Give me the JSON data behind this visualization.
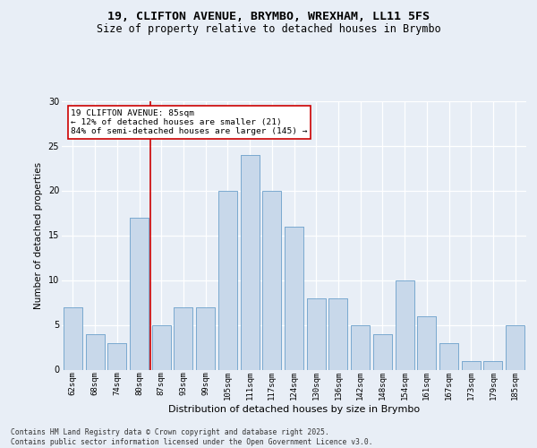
{
  "title_line1": "19, CLIFTON AVENUE, BRYMBO, WREXHAM, LL11 5FS",
  "title_line2": "Size of property relative to detached houses in Brymbo",
  "xlabel": "Distribution of detached houses by size in Brymbo",
  "ylabel": "Number of detached properties",
  "categories": [
    "62sqm",
    "68sqm",
    "74sqm",
    "80sqm",
    "87sqm",
    "93sqm",
    "99sqm",
    "105sqm",
    "111sqm",
    "117sqm",
    "124sqm",
    "130sqm",
    "136sqm",
    "142sqm",
    "148sqm",
    "154sqm",
    "161sqm",
    "167sqm",
    "173sqm",
    "179sqm",
    "185sqm"
  ],
  "values": [
    7,
    4,
    3,
    17,
    5,
    7,
    7,
    20,
    24,
    20,
    16,
    8,
    8,
    5,
    4,
    10,
    6,
    3,
    1,
    1,
    5
  ],
  "bar_color": "#c8d8ea",
  "bar_edge_color": "#7baad0",
  "background_color": "#e8eef6",
  "grid_color": "#ffffff",
  "red_line_x": 3.5,
  "annotation_box_text": "19 CLIFTON AVENUE: 85sqm\n← 12% of detached houses are smaller (21)\n84% of semi-detached houses are larger (145) →",
  "annotation_box_facecolor": "#ffffff",
  "annotation_box_edgecolor": "#cc0000",
  "ylim": [
    0,
    30
  ],
  "yticks": [
    0,
    5,
    10,
    15,
    20,
    25,
    30
  ],
  "footnote": "Contains HM Land Registry data © Crown copyright and database right 2025.\nContains public sector information licensed under the Open Government Licence v3.0."
}
